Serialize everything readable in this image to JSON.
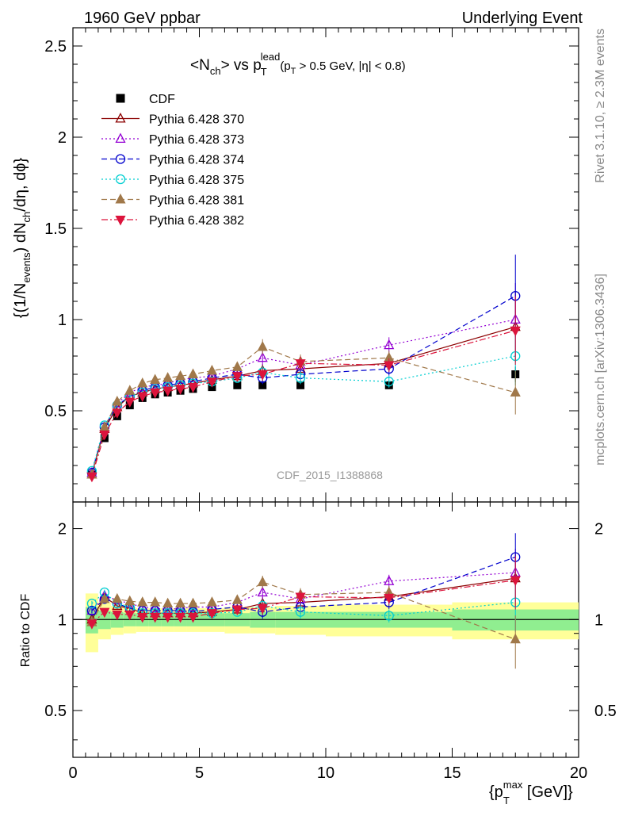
{
  "header": {
    "left": "1960 GeV ppbar",
    "right": "Underlying Event"
  },
  "side_text": {
    "rivet": "Rivet 3.1.10, ≥ 2.3M events",
    "mcplots": "mcplots.cern.ch [arXiv:1306.3436]"
  },
  "chart_data": [
    {
      "type": "scatter",
      "title": "<N_ch> vs p_T^lead (p_T > 0.5 GeV, |η| < 0.8)",
      "ylabel": "{(1/N_events) dN_ch/dη, dφ}",
      "xlim": [
        0,
        20
      ],
      "ylim": [
        0,
        2.6
      ],
      "yticks": [
        "0.5",
        "1",
        "1.5",
        "2",
        "2.5"
      ],
      "watermark": "CDF_2015_I1388868",
      "legend_position": "top-left",
      "x": [
        0.75,
        1.25,
        1.75,
        2.25,
        2.75,
        3.25,
        3.75,
        4.25,
        4.75,
        5.5,
        6.5,
        7.5,
        9.0,
        12.5,
        17.5
      ],
      "series": [
        {
          "name": "CDF",
          "color": "#000000",
          "marker": "square-filled",
          "values": [
            0.15,
            0.35,
            0.47,
            0.53,
            0.57,
            0.59,
            0.6,
            0.61,
            0.62,
            0.63,
            0.64,
            0.64,
            0.64,
            0.64,
            0.7
          ]
        },
        {
          "name": "Pythia 6.428 370",
          "color": "#8b0000",
          "marker": "triangle-up-open",
          "line": "solid",
          "values": [
            0.15,
            0.4,
            0.52,
            0.58,
            0.6,
            0.62,
            0.63,
            0.64,
            0.65,
            0.67,
            0.69,
            0.72,
            0.73,
            0.76,
            0.96
          ]
        },
        {
          "name": "Pythia 6.428 373",
          "color": "#9400d3",
          "marker": "triangle-up-open",
          "line": "dotted",
          "values": [
            0.16,
            0.41,
            0.54,
            0.6,
            0.63,
            0.64,
            0.65,
            0.67,
            0.68,
            0.69,
            0.73,
            0.79,
            0.75,
            0.86,
            1.0
          ]
        },
        {
          "name": "Pythia 6.428 374",
          "color": "#0000cd",
          "marker": "circle-open",
          "line": "dashed",
          "values": [
            0.16,
            0.41,
            0.53,
            0.58,
            0.61,
            0.63,
            0.64,
            0.65,
            0.66,
            0.68,
            0.7,
            0.68,
            0.7,
            0.73,
            1.13
          ]
        },
        {
          "name": "Pythia 6.428 375",
          "color": "#00ced1",
          "marker": "circle-open",
          "line": "dotted",
          "values": [
            0.17,
            0.42,
            0.53,
            0.58,
            0.6,
            0.62,
            0.63,
            0.64,
            0.65,
            0.66,
            0.68,
            0.71,
            0.68,
            0.66,
            0.8
          ]
        },
        {
          "name": "Pythia 6.428 381",
          "color": "#a0784a",
          "marker": "triangle-up-filled",
          "line": "dashed",
          "values": [
            0.15,
            0.41,
            0.55,
            0.61,
            0.65,
            0.67,
            0.68,
            0.69,
            0.7,
            0.72,
            0.74,
            0.85,
            0.77,
            0.79,
            0.6
          ]
        },
        {
          "name": "Pythia 6.428 382",
          "color": "#dc143c",
          "marker": "triangle-down-filled",
          "line": "dashdot",
          "values": [
            0.14,
            0.37,
            0.49,
            0.55,
            0.58,
            0.6,
            0.61,
            0.62,
            0.63,
            0.66,
            0.69,
            0.7,
            0.76,
            0.75,
            0.94
          ]
        }
      ]
    },
    {
      "type": "scatter",
      "ylabel": "Ratio to CDF",
      "xlabel": "{p_T^max [GeV]}",
      "xlim": [
        0,
        20
      ],
      "ylim": [
        0.35,
        2.45
      ],
      "yticks": [
        "0.5",
        "1",
        "2"
      ],
      "xticks": [
        "0",
        "5",
        "10",
        "15",
        "20"
      ],
      "x": [
        0.75,
        1.25,
        1.75,
        2.25,
        2.75,
        3.25,
        3.75,
        4.25,
        4.75,
        5.5,
        6.5,
        7.5,
        9.0,
        12.5,
        17.5
      ],
      "bands": {
        "edges": [
          0.5,
          1.0,
          1.5,
          2.0,
          2.5,
          3.0,
          3.5,
          4.0,
          4.5,
          5.0,
          6.0,
          7.0,
          8.0,
          10.0,
          15.0,
          20.0
        ],
        "green_halfwidth": [
          0.1,
          0.07,
          0.06,
          0.05,
          0.05,
          0.05,
          0.05,
          0.05,
          0.05,
          0.05,
          0.05,
          0.06,
          0.06,
          0.06,
          0.08
        ],
        "yellow_halfwidth": [
          0.22,
          0.14,
          0.11,
          0.1,
          0.09,
          0.09,
          0.09,
          0.09,
          0.09,
          0.09,
          0.1,
          0.1,
          0.11,
          0.12,
          0.14
        ]
      },
      "series": [
        {
          "name": "Pythia 6.428 370",
          "values": [
            1.0,
            1.19,
            1.11,
            1.09,
            1.05,
            1.05,
            1.05,
            1.05,
            1.05,
            1.06,
            1.08,
            1.13,
            1.14,
            1.19,
            1.37
          ]
        },
        {
          "name": "Pythia 6.428 373",
          "values": [
            1.07,
            1.2,
            1.16,
            1.13,
            1.1,
            1.09,
            1.08,
            1.09,
            1.1,
            1.1,
            1.14,
            1.23,
            1.17,
            1.34,
            1.43
          ]
        },
        {
          "name": "Pythia 6.428 374",
          "values": [
            1.07,
            1.17,
            1.13,
            1.09,
            1.07,
            1.07,
            1.07,
            1.07,
            1.06,
            1.08,
            1.1,
            1.06,
            1.1,
            1.14,
            1.61
          ]
        },
        {
          "name": "Pythia 6.428 375",
          "values": [
            1.13,
            1.23,
            1.13,
            1.1,
            1.05,
            1.05,
            1.05,
            1.05,
            1.05,
            1.05,
            1.06,
            1.11,
            1.06,
            1.03,
            1.14
          ]
        },
        {
          "name": "Pythia 6.428 381",
          "values": [
            0.98,
            1.17,
            1.17,
            1.15,
            1.14,
            1.14,
            1.13,
            1.13,
            1.13,
            1.14,
            1.16,
            1.33,
            1.21,
            1.23,
            0.86
          ]
        },
        {
          "name": "Pythia 6.428 382",
          "values": [
            0.97,
            1.06,
            1.04,
            1.04,
            1.02,
            1.02,
            1.02,
            1.02,
            1.02,
            1.05,
            1.08,
            1.09,
            1.19,
            1.18,
            1.35
          ]
        }
      ]
    }
  ]
}
